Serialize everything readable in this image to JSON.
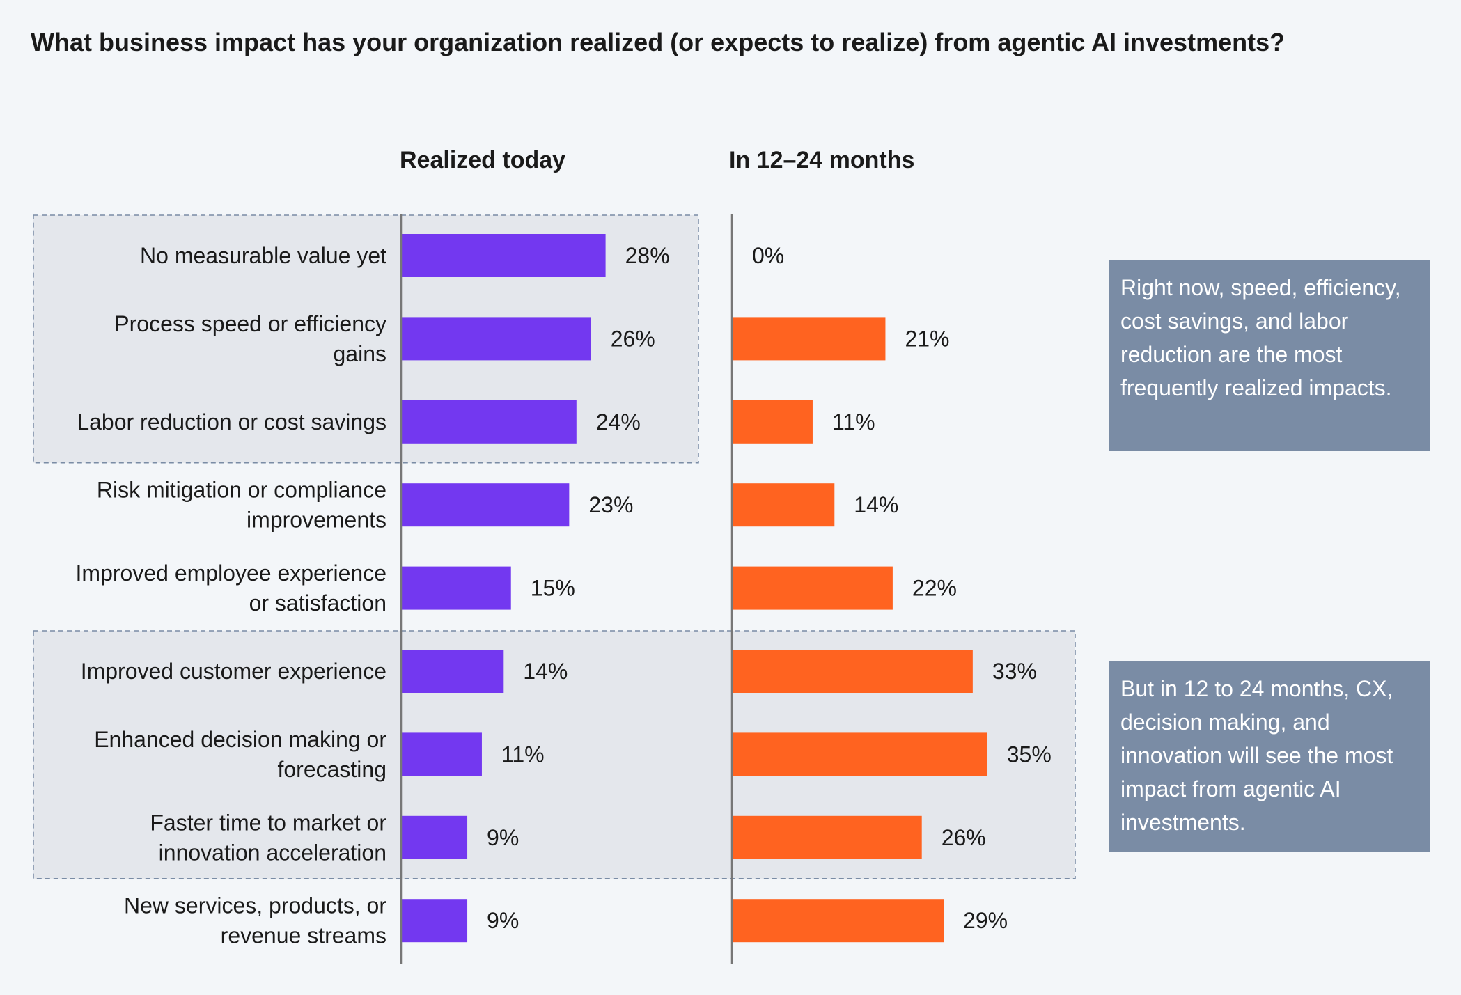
{
  "chart_data": {
    "type": "bar",
    "title": "What business impact has your organization realized (or expects to realize) from agentic AI investments?",
    "categories": [
      "No measurable value yet",
      "Process speed or efficiency gains",
      "Labor reduction or cost savings",
      "Risk mitigation or compliance improvements",
      "Improved employee experience or satisfaction",
      "Improved customer experience",
      "Enhanced decision making or forecasting",
      "Faster time to market or innovation acceleration",
      "New services, products, or revenue streams"
    ],
    "category_lines": [
      [
        "No measurable value yet"
      ],
      [
        "Process speed or efficiency",
        "gains"
      ],
      [
        "Labor reduction or cost savings"
      ],
      [
        "Risk mitigation or compliance",
        "improvements"
      ],
      [
        "Improved employee experience",
        "or satisfaction"
      ],
      [
        "Improved customer experience"
      ],
      [
        "Enhanced decision making or",
        "forecasting"
      ],
      [
        "Faster time to market or",
        "innovation acceleration"
      ],
      [
        "New services, products, or",
        "revenue streams"
      ]
    ],
    "series": [
      {
        "name": "Realized today",
        "color": "#7338f0",
        "values": [
          28,
          26,
          24,
          23,
          15,
          14,
          11,
          9,
          9
        ],
        "labels": [
          "28%",
          "26%",
          "24%",
          "23%",
          "15%",
          "14%",
          "11%",
          "9%",
          "9%"
        ]
      },
      {
        "name": "In 12–24 months",
        "color": "#ff6320",
        "values": [
          0,
          21,
          11,
          14,
          22,
          33,
          35,
          26,
          29
        ],
        "labels": [
          "0%",
          "21%",
          "11%",
          "14%",
          "22%",
          "33%",
          "35%",
          "26%",
          "29%"
        ]
      }
    ],
    "unit": "%",
    "highlight_groups": [
      {
        "categories": [
          0,
          1,
          2
        ],
        "series": [
          "Realized today"
        ]
      },
      {
        "categories": [
          5,
          6,
          7
        ],
        "series": [
          "Realized today",
          "In 12–24 months"
        ]
      }
    ],
    "highlight_fill": "#e4e7ec",
    "highlight_border": "#7a8ca5"
  },
  "callouts": [
    {
      "text": "Right now, speed, efficiency, cost savings, and labor reduction are the most frequently realized impacts."
    },
    {
      "text": "But in 12 to 24 months, CX, decision making, and innovation will see the most impact from agentic AI investments."
    }
  ],
  "colors": {
    "background": "#f3f6f9",
    "callout_fill": "#7a8ca5",
    "axis": "#777777"
  }
}
